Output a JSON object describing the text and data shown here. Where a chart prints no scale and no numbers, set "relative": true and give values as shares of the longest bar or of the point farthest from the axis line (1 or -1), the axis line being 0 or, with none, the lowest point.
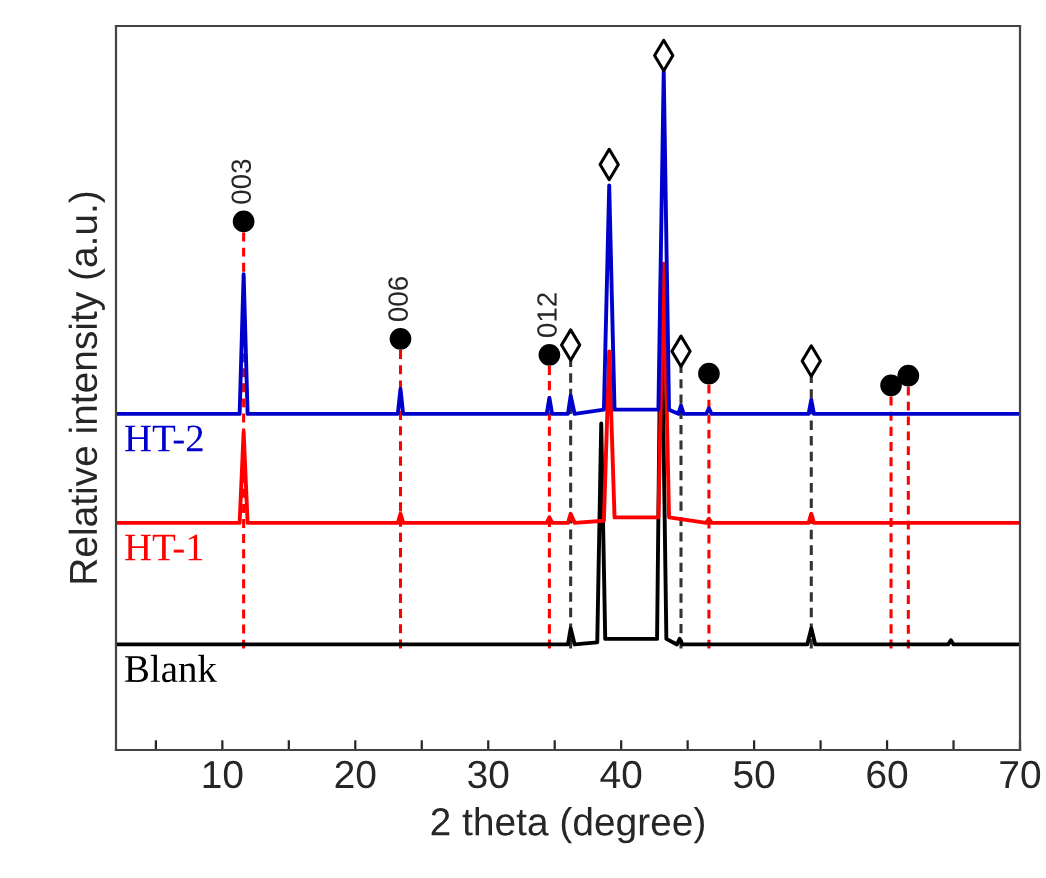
{
  "chart_data": {
    "type": "line",
    "relative": true,
    "xlabel": "2 theta (degree)",
    "ylabel": "Relative intensity (a.u.)",
    "xlim": [
      2,
      70
    ],
    "xticks": [
      {
        "value": 5,
        "label": null
      },
      10,
      {
        "value": 15,
        "label": null
      },
      20,
      {
        "value": 25,
        "label": null
      },
      30,
      {
        "value": 35,
        "label": null
      },
      40,
      {
        "value": 45,
        "label": null
      },
      50,
      {
        "value": 55,
        "label": null
      },
      60,
      {
        "value": 65,
        "label": null
      },
      70
    ],
    "grid": false,
    "legend": false,
    "series": [
      {
        "name": "Blank",
        "color": "#000000",
        "x": [
          2,
          36.0,
          36.2,
          36.5,
          38.2,
          38.5,
          38.8,
          42.7,
          43.0,
          43.4,
          44.2,
          44.4,
          44.6,
          54.0,
          54.3,
          54.6,
          64.6,
          64.8,
          65.0,
          70
        ],
        "values": [
          0.152,
          0.152,
          0.175,
          0.152,
          0.155,
          0.47,
          0.16,
          0.16,
          0.7,
          0.16,
          0.152,
          0.16,
          0.152,
          0.152,
          0.175,
          0.152,
          0.152,
          0.158,
          0.152,
          0.152
        ]
      },
      {
        "name": "HT-1",
        "color": "#ff0000",
        "x": [
          2,
          11.3,
          11.6,
          11.9,
          23.2,
          23.4,
          23.6,
          34.4,
          34.6,
          34.8,
          36.0,
          36.2,
          36.5,
          38.7,
          39.1,
          39.5,
          42.8,
          43.2,
          43.6,
          46.4,
          46.6,
          46.8,
          54.1,
          54.3,
          54.5,
          70
        ],
        "values": [
          0.327,
          0.327,
          0.458,
          0.327,
          0.327,
          0.34,
          0.327,
          0.327,
          0.335,
          0.327,
          0.327,
          0.34,
          0.327,
          0.33,
          0.574,
          0.335,
          0.335,
          0.7,
          0.335,
          0.327,
          0.333,
          0.327,
          0.327,
          0.34,
          0.327,
          0.327
        ]
      },
      {
        "name": "HT-2",
        "color": "#0000cc",
        "x": [
          2,
          11.3,
          11.6,
          11.9,
          23.2,
          23.4,
          23.6,
          34.4,
          34.6,
          34.8,
          36.0,
          36.2,
          36.5,
          38.7,
          39.1,
          39.5,
          42.8,
          43.2,
          43.6,
          44.3,
          44.5,
          44.7,
          46.4,
          46.6,
          46.8,
          54.1,
          54.3,
          54.5,
          70
        ],
        "values": [
          0.484,
          0.484,
          0.685,
          0.484,
          0.484,
          0.52,
          0.484,
          0.484,
          0.507,
          0.484,
          0.484,
          0.51,
          0.484,
          0.49,
          0.813,
          0.49,
          0.49,
          0.977,
          0.49,
          0.484,
          0.496,
          0.484,
          0.484,
          0.492,
          0.484,
          0.484,
          0.504,
          0.484,
          0.484
        ]
      },
      {
        "type": "line",
        "line_style": "dashed",
        "color": "#ff0000",
        "x": [
          11.6,
          11.6
        ],
        "values": [
          0.146,
          0.745
        ]
      },
      {
        "type": "line",
        "line_style": "dashed",
        "color": "#ff0000",
        "x": [
          23.4,
          23.4
        ],
        "values": [
          0.146,
          0.576
        ]
      },
      {
        "type": "line",
        "line_style": "dashed",
        "color": "#ff0000",
        "x": [
          34.6,
          34.6
        ],
        "values": [
          0.146,
          0.553
        ]
      },
      {
        "type": "line",
        "line_style": "dashed",
        "color": "#ff0000",
        "x": [
          46.6,
          46.6
        ],
        "values": [
          0.146,
          0.526
        ]
      },
      {
        "type": "line",
        "line_style": "dashed",
        "color": "#ff0000",
        "x": [
          60.3,
          60.3
        ],
        "values": [
          0.146,
          0.509
        ]
      },
      {
        "type": "line",
        "line_style": "dashed",
        "color": "#ff0000",
        "x": [
          61.6,
          61.6
        ],
        "values": [
          0.146,
          0.523
        ]
      },
      {
        "type": "line",
        "line_style": "dashed",
        "color": "#333333",
        "x": [
          36.2,
          36.2
        ],
        "values": [
          0.146,
          0.565
        ]
      },
      {
        "type": "line",
        "line_style": "dashed",
        "color": "#333333",
        "x": [
          44.5,
          44.5
        ],
        "values": [
          0.146,
          0.556
        ]
      },
      {
        "type": "line",
        "line_style": "dashed",
        "color": "#333333",
        "x": [
          54.3,
          54.3
        ],
        "values": [
          0.146,
          0.542
        ]
      },
      {
        "type": "scatter",
        "marker": "circle",
        "color": "#000000",
        "x": [
          11.6,
          23.4,
          34.6,
          46.6,
          60.3,
          61.6
        ],
        "values": [
          0.761,
          0.592,
          0.569,
          0.542,
          0.525,
          0.539
        ]
      },
      {
        "type": "scatter",
        "marker": "diamond",
        "color": "#000000",
        "x": [
          36.2,
          39.1,
          43.2,
          44.5,
          54.3
        ],
        "values": [
          0.583,
          0.843,
          1.0,
          0.574,
          0.56
        ]
      }
    ],
    "annotations": [
      {
        "text": "003",
        "x": 11.6,
        "y": 0.761
      },
      {
        "text": "006",
        "x": 23.4,
        "y": 0.592
      },
      {
        "text": "012",
        "x": 34.6,
        "y": 0.569
      }
    ]
  }
}
